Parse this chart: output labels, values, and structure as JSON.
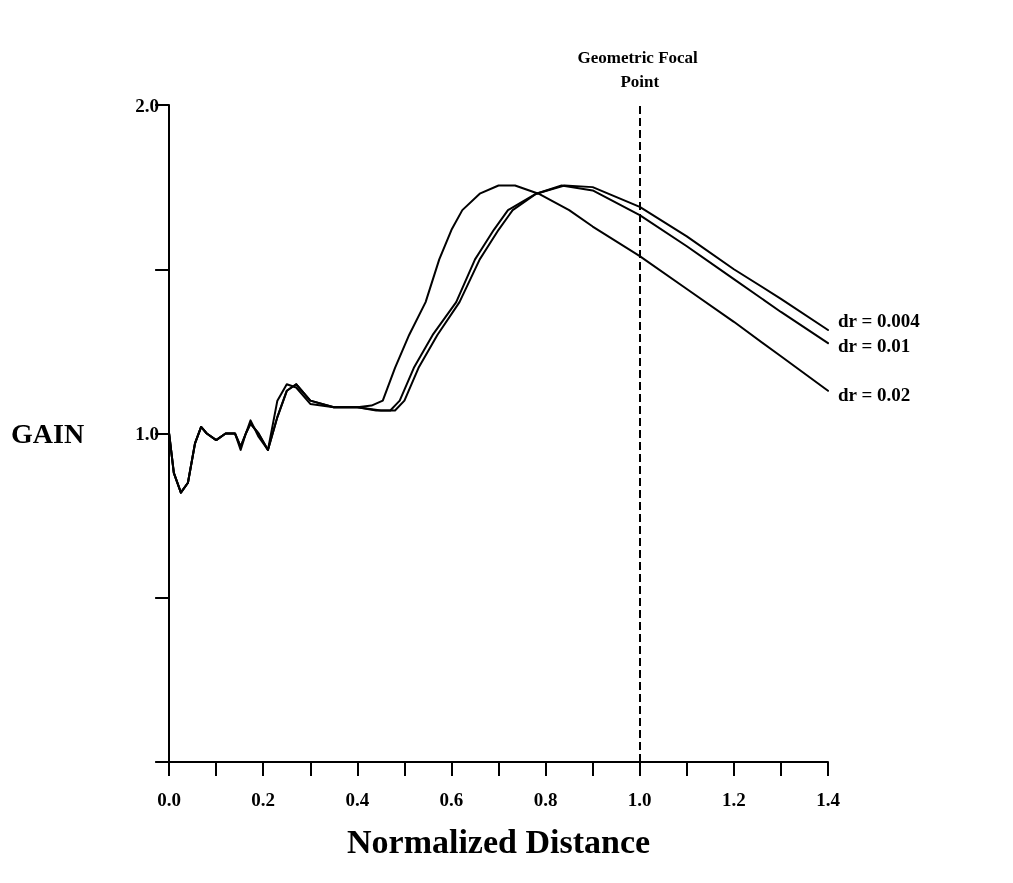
{
  "chart_data": {
    "type": "line",
    "xlabel": "Normalized Distance",
    "ylabel": "GAIN",
    "xlim": [
      0,
      1.4
    ],
    "ylim": [
      0,
      2
    ],
    "xticks": [
      {
        "value": 0,
        "label": "0.0"
      },
      {
        "value": 0.1,
        "label": null
      },
      {
        "value": 0.2,
        "label": "0.2"
      },
      {
        "value": 0.3,
        "label": null
      },
      {
        "value": 0.4,
        "label": "0.4"
      },
      {
        "value": 0.5,
        "label": null
      },
      {
        "value": 0.6,
        "label": "0.6"
      },
      {
        "value": 0.7,
        "label": null
      },
      {
        "value": 0.8,
        "label": "0.8"
      },
      {
        "value": 0.9,
        "label": null
      },
      {
        "value": 1.0,
        "label": "1.0"
      },
      {
        "value": 1.1,
        "label": null
      },
      {
        "value": 1.2,
        "label": "1.2"
      },
      {
        "value": 1.3,
        "label": null
      },
      {
        "value": 1.4,
        "label": "1.4"
      }
    ],
    "yticks": [
      {
        "value": 0,
        "label": null
      },
      {
        "value": 0.5,
        "label": null
      },
      {
        "value": 1.0,
        "label": "1.0"
      },
      {
        "value": 1.5,
        "label": null
      },
      {
        "value": 2.0,
        "label": "2.0"
      }
    ],
    "grid": false,
    "legend": false,
    "marker": "none",
    "line_style": "solid",
    "ref_lines": [
      {
        "axis": "x",
        "value": 1.0,
        "label": "Geometric Focal Point",
        "color": "#000000",
        "line_style": "dashed"
      }
    ],
    "series": [
      {
        "name": "dr = 0.004",
        "color": "#000000",
        "x": [
          0,
          0.01,
          0.025,
          0.04,
          0.055,
          0.068,
          0.08,
          0.1,
          0.12,
          0.14,
          0.152,
          0.163,
          0.173,
          0.19,
          0.21,
          0.23,
          0.25,
          0.27,
          0.3,
          0.35,
          0.4,
          0.44,
          0.47,
          0.49,
          0.52,
          0.56,
          0.61,
          0.65,
          0.69,
          0.72,
          0.78,
          0.84,
          0.9,
          1.0,
          1.1,
          1.2,
          1.3,
          1.4
        ],
        "values": [
          1.0,
          0.88,
          0.82,
          0.85,
          0.97,
          1.02,
          1.0,
          0.98,
          1.0,
          1.0,
          0.96,
          1.0,
          1.03,
          1.0,
          0.95,
          1.05,
          1.13,
          1.15,
          1.1,
          1.08,
          1.08,
          1.07,
          1.07,
          1.1,
          1.2,
          1.3,
          1.4,
          1.53,
          1.62,
          1.68,
          1.73,
          1.755,
          1.75,
          1.69,
          1.6,
          1.5,
          1.41,
          1.315
        ]
      },
      {
        "name": "dr = 0.01",
        "color": "#000000",
        "x": [
          0,
          0.01,
          0.025,
          0.04,
          0.055,
          0.068,
          0.08,
          0.1,
          0.12,
          0.14,
          0.152,
          0.163,
          0.173,
          0.19,
          0.21,
          0.23,
          0.25,
          0.27,
          0.3,
          0.35,
          0.4,
          0.45,
          0.48,
          0.5,
          0.53,
          0.57,
          0.617,
          0.66,
          0.7,
          0.73,
          0.78,
          0.834,
          0.9,
          1.0,
          1.1,
          1.2,
          1.3,
          1.4
        ],
        "values": [
          1.0,
          0.88,
          0.82,
          0.85,
          0.97,
          1.02,
          1.0,
          0.98,
          1.0,
          1.0,
          0.96,
          1.0,
          1.03,
          1.0,
          0.95,
          1.05,
          1.13,
          1.15,
          1.1,
          1.08,
          1.08,
          1.07,
          1.07,
          1.1,
          1.2,
          1.3,
          1.4,
          1.53,
          1.62,
          1.68,
          1.73,
          1.755,
          1.74,
          1.665,
          1.57,
          1.47,
          1.37,
          1.275
        ]
      },
      {
        "name": "dr = 0.02",
        "color": "#000000",
        "x": [
          0,
          0.01,
          0.025,
          0.04,
          0.055,
          0.068,
          0.08,
          0.1,
          0.12,
          0.14,
          0.152,
          0.163,
          0.173,
          0.19,
          0.21,
          0.23,
          0.25,
          0.27,
          0.3,
          0.35,
          0.4,
          0.43,
          0.454,
          0.48,
          0.51,
          0.545,
          0.574,
          0.6,
          0.623,
          0.66,
          0.7,
          0.735,
          0.785,
          0.85,
          0.9,
          1.0,
          1.1,
          1.2,
          1.3,
          1.4
        ],
        "values": [
          1.0,
          0.88,
          0.82,
          0.85,
          0.97,
          1.02,
          1.0,
          0.98,
          1.0,
          1.0,
          0.95,
          1.0,
          1.04,
          0.99,
          0.95,
          1.1,
          1.15,
          1.14,
          1.09,
          1.08,
          1.08,
          1.085,
          1.1,
          1.2,
          1.3,
          1.4,
          1.53,
          1.62,
          1.68,
          1.73,
          1.755,
          1.755,
          1.73,
          1.68,
          1.63,
          1.54,
          1.44,
          1.34,
          1.235,
          1.13
        ]
      }
    ]
  }
}
